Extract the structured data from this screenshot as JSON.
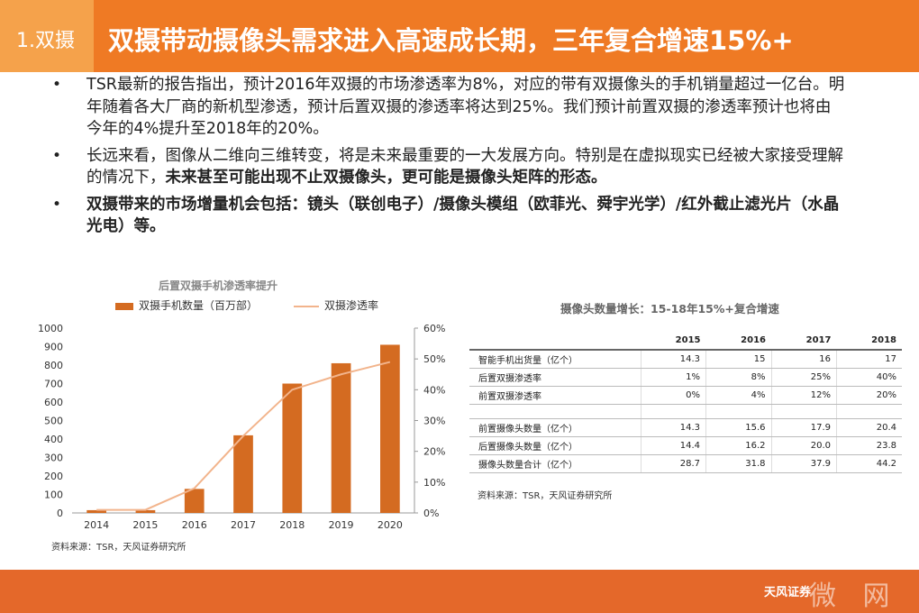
{
  "header": {
    "section": "1.双摄",
    "title": "双摄带动摄像头需求进入高速成长期，三年复合增速15%+"
  },
  "bullets": [
    {
      "text": "TSR最新的报告指出，预计2016年双摄的市场渗透率为8%，对应的带有双摄像头的手机销量超过一亿台。明年随着各大厂商的新机型渗透，预计后置双摄的渗透率将达到25%。我们预计前置双摄的渗透率预计也将由今年的4%提升至2018年的20%。"
    },
    {
      "text": "长远来看，图像从二维向三维转变，将是未来最重要的一大发展方向。特别是在虚拟现实已经被大家接受理解的情况下，",
      "bold": "未来甚至可能出现不止双摄像头，更可能是摄像头矩阵的形态。"
    },
    {
      "bold": "双摄带来的市场增量机会包括：镜头（联创电子）/摄像头模组（欧菲光、舜宇光学）/红外截止滤光片（水晶光电）等。"
    }
  ],
  "chart": {
    "title": "后置双摄手机渗透率提升",
    "source": "资料来源：TSR，天风证券研究所"
  },
  "chart_data": {
    "type": "bar",
    "title": "后置双摄手机渗透率提升",
    "categories": [
      "2014",
      "2015",
      "2016",
      "2017",
      "2018",
      "2019",
      "2020"
    ],
    "series": [
      {
        "name": "双摄手机数量（百万部）",
        "type": "bar",
        "axis": "left",
        "color": "#d46b21",
        "values": [
          15,
          15,
          130,
          420,
          700,
          810,
          910
        ]
      },
      {
        "name": "双摄渗透率",
        "type": "line",
        "axis": "right",
        "color": "#f2b48c",
        "values": [
          1,
          1,
          8,
          25,
          40,
          45,
          49
        ]
      }
    ],
    "y_left": {
      "ticks": [
        "0",
        "100",
        "200",
        "300",
        "400",
        "500",
        "600",
        "700",
        "800",
        "900",
        "1000"
      ],
      "ylim": [
        0,
        1000
      ]
    },
    "y_right": {
      "ticks": [
        "0%",
        "10%",
        "20%",
        "30%",
        "40%",
        "50%",
        "60%"
      ],
      "ylim": [
        0,
        60
      ]
    },
    "legend": "top"
  },
  "table": {
    "title": "摄像头数量增长：15-18年15%+复合增速",
    "headers": [
      "",
      "2015",
      "2016",
      "2017",
      "2018"
    ],
    "rows": [
      [
        "智能手机出货量（亿个）",
        "14.3",
        "15",
        "16",
        "17"
      ],
      [
        "后置双摄渗透率",
        "1%",
        "8%",
        "25%",
        "40%"
      ],
      [
        "前置双摄渗透率",
        "0%",
        "4%",
        "12%",
        "20%"
      ],
      [
        "",
        "",
        "",
        "",
        ""
      ],
      [
        "前置摄像头数量（亿个）",
        "14.3",
        "15.6",
        "17.9",
        "20.4"
      ],
      [
        "后置摄像头数量（亿个）",
        "14.4",
        "16.2",
        "20.0",
        "23.8"
      ],
      [
        "摄像头数量合计（亿个）",
        "28.7",
        "31.8",
        "37.9",
        "44.2"
      ]
    ],
    "source": "资料来源：TSR，天风证券研究所"
  },
  "footer": {
    "logo": "天风证券",
    "watermark": "微 网"
  }
}
